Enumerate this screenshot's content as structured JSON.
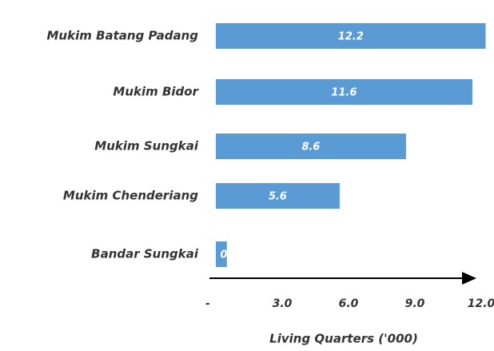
{
  "chart_data": {
    "type": "hbar",
    "xlabel": "Living Quarters ('000)",
    "categories": [
      "Mukim Batang Padang",
      "Mukim Bidor",
      "Mukim Sungkai",
      "Mukim Chenderiang",
      "Bandar Sungkai"
    ],
    "values": [
      12.2,
      11.6,
      8.6,
      5.6,
      0.5
    ],
    "color": "#5b9bd5",
    "xlim": [
      0,
      12
    ],
    "xticks": [
      {
        "value": 0,
        "label": "-"
      },
      {
        "value": 3,
        "label": "3.0"
      },
      {
        "value": 6,
        "label": "6.0"
      },
      {
        "value": 9,
        "label": "9.0"
      },
      {
        "value": 12,
        "label": "12.0"
      }
    ]
  }
}
